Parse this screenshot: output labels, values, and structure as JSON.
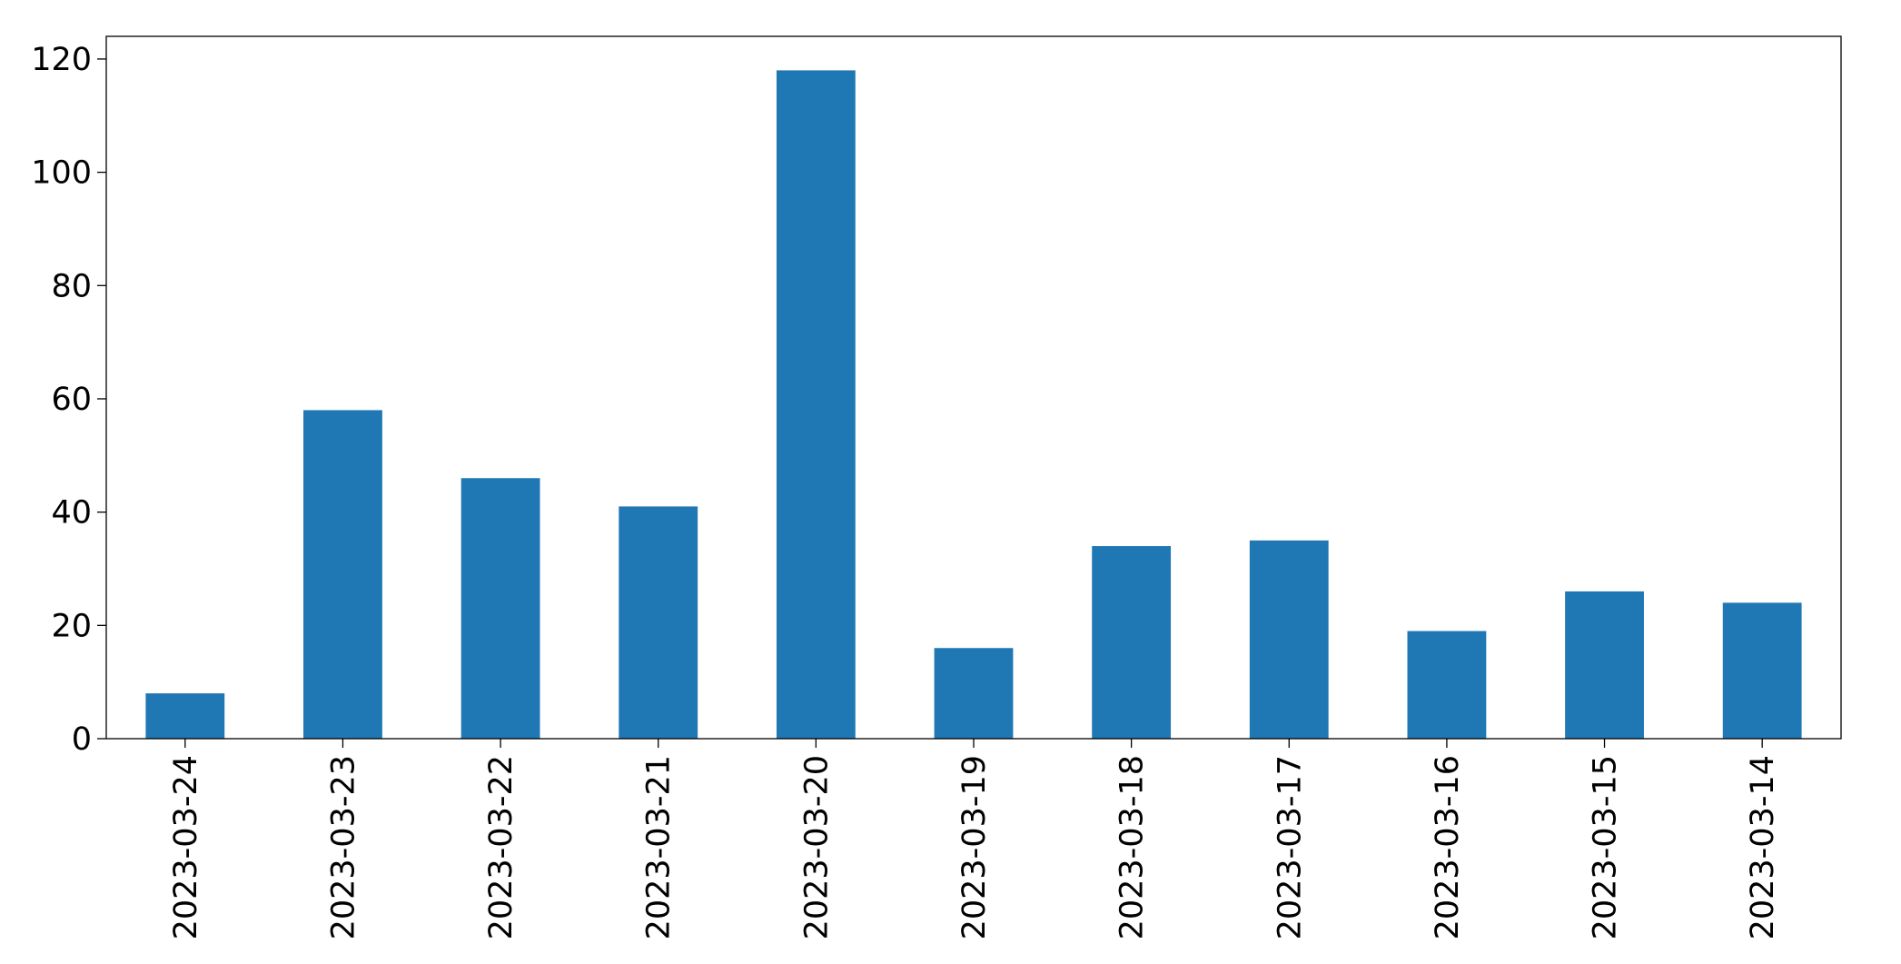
{
  "chart_data": {
    "type": "bar",
    "categories": [
      "2023-03-24",
      "2023-03-23",
      "2023-03-22",
      "2023-03-21",
      "2023-03-20",
      "2023-03-19",
      "2023-03-18",
      "2023-03-17",
      "2023-03-16",
      "2023-03-15",
      "2023-03-14"
    ],
    "values": [
      8,
      58,
      46,
      41,
      118,
      16,
      34,
      35,
      19,
      26,
      24
    ],
    "color": "#1f77b4",
    "ylim": [
      0,
      124
    ],
    "yticks": [
      0,
      20,
      40,
      60,
      80,
      100,
      120
    ],
    "grid": false
  }
}
